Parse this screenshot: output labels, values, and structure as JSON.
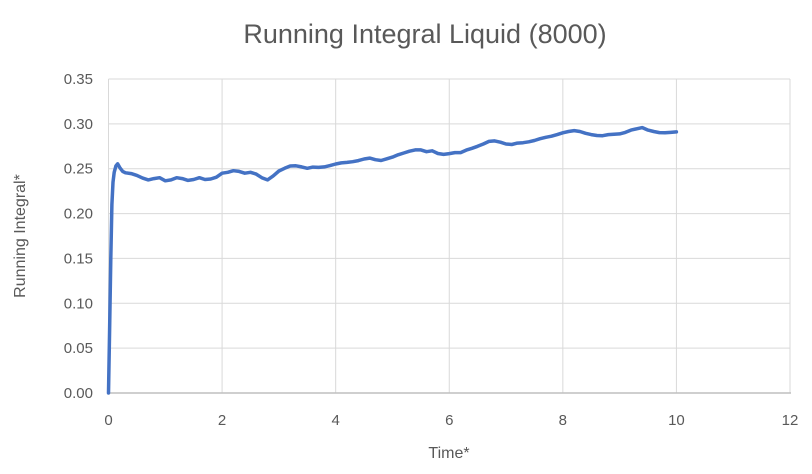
{
  "chart_data": {
    "type": "line",
    "title": "Running Integral Liquid (8000)",
    "xlabel": "Time*",
    "ylabel": "Running Integral*",
    "xlim": [
      0,
      12
    ],
    "ylim": [
      0,
      0.35
    ],
    "x_ticks": [
      0,
      2,
      4,
      6,
      8,
      10,
      12
    ],
    "x_tick_labels": [
      "0",
      "2",
      "4",
      "6",
      "8",
      "10",
      "12"
    ],
    "y_ticks": [
      0,
      0.05,
      0.1,
      0.15,
      0.2,
      0.25,
      0.3,
      0.35
    ],
    "y_tick_labels": [
      "0.00",
      "0.05",
      "0.10",
      "0.15",
      "0.20",
      "0.25",
      "0.30",
      "0.35"
    ],
    "grid": true,
    "legend": "none",
    "series": [
      {
        "name": "Running Integral Liquid",
        "color": "#4472C4",
        "points": [
          [
            0,
            0
          ],
          [
            0.02,
            0.07
          ],
          [
            0.04,
            0.15
          ],
          [
            0.06,
            0.21
          ],
          [
            0.08,
            0.235
          ],
          [
            0.1,
            0.246
          ],
          [
            0.13,
            0.253
          ],
          [
            0.16,
            0.2555
          ],
          [
            0.2,
            0.251
          ],
          [
            0.25,
            0.247
          ],
          [
            0.3,
            0.2455
          ],
          [
            0.4,
            0.2445
          ],
          [
            0.5,
            0.2425
          ],
          [
            0.6,
            0.2395
          ],
          [
            0.7,
            0.2375
          ],
          [
            0.8,
            0.239
          ],
          [
            0.9,
            0.24
          ],
          [
            1.0,
            0.2365
          ],
          [
            1.1,
            0.2375
          ],
          [
            1.2,
            0.24
          ],
          [
            1.3,
            0.239
          ],
          [
            1.4,
            0.237
          ],
          [
            1.5,
            0.238
          ],
          [
            1.6,
            0.24
          ],
          [
            1.7,
            0.238
          ],
          [
            1.8,
            0.2385
          ],
          [
            1.9,
            0.2405
          ],
          [
            2.0,
            0.245
          ],
          [
            2.1,
            0.246
          ],
          [
            2.2,
            0.2478
          ],
          [
            2.3,
            0.247
          ],
          [
            2.4,
            0.245
          ],
          [
            2.5,
            0.246
          ],
          [
            2.6,
            0.244
          ],
          [
            2.7,
            0.24
          ],
          [
            2.8,
            0.2375
          ],
          [
            2.9,
            0.242
          ],
          [
            3.0,
            0.2475
          ],
          [
            3.1,
            0.2505
          ],
          [
            3.2,
            0.253
          ],
          [
            3.3,
            0.2533
          ],
          [
            3.4,
            0.252
          ],
          [
            3.5,
            0.2505
          ],
          [
            3.6,
            0.2518
          ],
          [
            3.7,
            0.2515
          ],
          [
            3.8,
            0.252
          ],
          [
            3.9,
            0.2535
          ],
          [
            4.0,
            0.2552
          ],
          [
            4.1,
            0.2565
          ],
          [
            4.2,
            0.257
          ],
          [
            4.3,
            0.2578
          ],
          [
            4.4,
            0.259
          ],
          [
            4.5,
            0.2608
          ],
          [
            4.6,
            0.2618
          ],
          [
            4.7,
            0.26
          ],
          [
            4.8,
            0.2592
          ],
          [
            4.9,
            0.261
          ],
          [
            5.0,
            0.263
          ],
          [
            5.1,
            0.2655
          ],
          [
            5.2,
            0.2675
          ],
          [
            5.3,
            0.2695
          ],
          [
            5.4,
            0.271
          ],
          [
            5.5,
            0.271
          ],
          [
            5.6,
            0.269
          ],
          [
            5.7,
            0.27
          ],
          [
            5.8,
            0.267
          ],
          [
            5.9,
            0.266
          ],
          [
            6.0,
            0.2668
          ],
          [
            6.1,
            0.268
          ],
          [
            6.2,
            0.268
          ],
          [
            6.3,
            0.2708
          ],
          [
            6.4,
            0.2728
          ],
          [
            6.5,
            0.275
          ],
          [
            6.6,
            0.2775
          ],
          [
            6.7,
            0.2805
          ],
          [
            6.8,
            0.281
          ],
          [
            6.9,
            0.2795
          ],
          [
            7.0,
            0.2775
          ],
          [
            7.1,
            0.277
          ],
          [
            7.2,
            0.2785
          ],
          [
            7.3,
            0.279
          ],
          [
            7.4,
            0.28
          ],
          [
            7.5,
            0.2815
          ],
          [
            7.6,
            0.2835
          ],
          [
            7.7,
            0.285
          ],
          [
            7.8,
            0.2862
          ],
          [
            7.9,
            0.288
          ],
          [
            8.0,
            0.29
          ],
          [
            8.1,
            0.2915
          ],
          [
            8.2,
            0.2925
          ],
          [
            8.3,
            0.2915
          ],
          [
            8.4,
            0.2895
          ],
          [
            8.5,
            0.288
          ],
          [
            8.6,
            0.287
          ],
          [
            8.7,
            0.2868
          ],
          [
            8.8,
            0.288
          ],
          [
            8.9,
            0.2885
          ],
          [
            9.0,
            0.2888
          ],
          [
            9.1,
            0.2905
          ],
          [
            9.2,
            0.293
          ],
          [
            9.3,
            0.2945
          ],
          [
            9.4,
            0.2958
          ],
          [
            9.5,
            0.293
          ],
          [
            9.6,
            0.2915
          ],
          [
            9.7,
            0.2903
          ],
          [
            9.8,
            0.29
          ],
          [
            9.9,
            0.2905
          ],
          [
            10.0,
            0.291
          ]
        ]
      }
    ]
  },
  "colors": {
    "background": "#FFFFFF",
    "title_text": "#595959",
    "axis_text": "#595959",
    "gridline": "#D9D9D9",
    "axis_line": "#BFBFBF",
    "series_line": "#4472C4"
  }
}
